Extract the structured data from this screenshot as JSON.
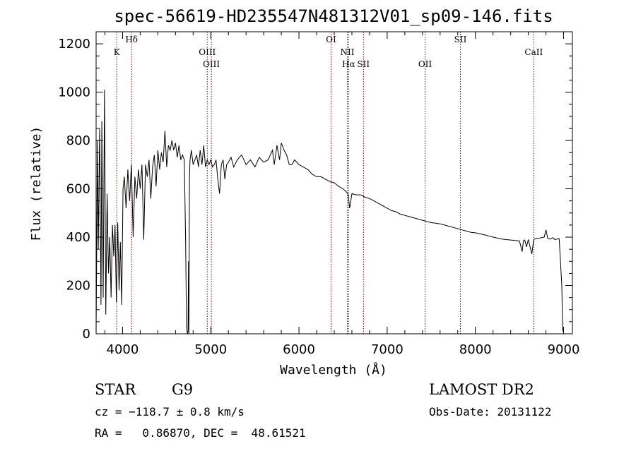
{
  "chart_data": {
    "type": "line",
    "title": "spec-56619-HD235547N481312V01_sp09-146.fits",
    "xlabel": "Wavelength (Å)",
    "ylabel": "Flux (relative)",
    "xlim": [
      3700,
      9100
    ],
    "ylim": [
      0,
      1250
    ],
    "x_ticks": [
      4000,
      5000,
      6000,
      7000,
      8000,
      9000
    ],
    "y_ticks": [
      0,
      200,
      400,
      600,
      800,
      1000,
      1200
    ],
    "grid": false,
    "series": [
      {
        "x": [
          3700,
          3715,
          3725,
          3740,
          3755,
          3765,
          3780,
          3795,
          3810,
          3825,
          3840,
          3855,
          3870,
          3885,
          3900,
          3915,
          3930,
          3945,
          3960,
          3975,
          3990,
          4005,
          4020,
          4040,
          4060,
          4080,
          4100,
          4120,
          4140,
          4160,
          4180,
          4200,
          4220,
          4240,
          4260,
          4280,
          4300,
          4320,
          4340,
          4360,
          4380,
          4400,
          4420,
          4440,
          4460,
          4480,
          4500,
          4520,
          4540,
          4560,
          4580,
          4600,
          4620,
          4640,
          4660,
          4680,
          4700,
          4715,
          4725,
          4735,
          4742,
          4748,
          4752,
          4758,
          4765,
          4780,
          4800,
          4820,
          4840,
          4860,
          4880,
          4900,
          4920,
          4940,
          4960,
          4980,
          5000,
          5020,
          5040,
          5060,
          5080,
          5100,
          5120,
          5140,
          5160,
          5180,
          5200,
          5230,
          5260,
          5300,
          5350,
          5400,
          5450,
          5500,
          5550,
          5600,
          5650,
          5700,
          5720,
          5750,
          5780,
          5800,
          5830,
          5860,
          5890,
          5920,
          5950,
          6000,
          6050,
          6100,
          6150,
          6200,
          6250,
          6300,
          6350,
          6400,
          6450,
          6500,
          6530,
          6555,
          6563,
          6575,
          6600,
          6650,
          6700,
          6750,
          6800,
          6850,
          6900,
          6950,
          7000,
          7050,
          7100,
          7150,
          7200,
          7250,
          7300,
          7350,
          7400,
          7450,
          7500,
          7550,
          7600,
          7650,
          7700,
          7750,
          7800,
          7850,
          7900,
          7950,
          8000,
          8050,
          8100,
          8150,
          8200,
          8250,
          8300,
          8350,
          8400,
          8450,
          8500,
          8530,
          8545,
          8560,
          8580,
          8600,
          8640,
          8660,
          8670,
          8690,
          8720,
          8750,
          8780,
          8800,
          8820,
          8850,
          8880,
          8900,
          8950,
          8980,
          8990
        ],
        "y": [
          0,
          800,
          350,
          850,
          120,
          880,
          150,
          1010,
          80,
          580,
          250,
          400,
          150,
          450,
          320,
          450,
          130,
          460,
          180,
          380,
          120,
          600,
          650,
          520,
          680,
          550,
          700,
          400,
          650,
          560,
          680,
          600,
          700,
          390,
          700,
          650,
          720,
          560,
          690,
          740,
          610,
          760,
          680,
          750,
          710,
          840,
          690,
          780,
          760,
          800,
          760,
          790,
          730,
          780,
          720,
          740,
          720,
          380,
          30,
          0,
          10,
          300,
          0,
          640,
          720,
          760,
          700,
          720,
          740,
          690,
          760,
          700,
          780,
          690,
          720,
          700,
          720,
          690,
          700,
          720,
          640,
          580,
          700,
          720,
          640,
          700,
          710,
          730,
          690,
          720,
          740,
          700,
          720,
          690,
          730,
          710,
          720,
          760,
          700,
          780,
          720,
          790,
          760,
          740,
          700,
          700,
          720,
          700,
          690,
          680,
          660,
          650,
          650,
          640,
          630,
          625,
          610,
          600,
          590,
          580,
          560,
          520,
          580,
          575,
          575,
          565,
          560,
          550,
          540,
          530,
          520,
          510,
          505,
          495,
          490,
          485,
          480,
          475,
          470,
          465,
          460,
          458,
          455,
          450,
          445,
          440,
          435,
          430,
          425,
          420,
          418,
          414,
          410,
          405,
          400,
          396,
          392,
          390,
          388,
          386,
          384,
          340,
          385,
          388,
          360,
          390,
          330,
          388,
          392,
          395,
          395,
          398,
          400,
          430,
          395,
          392,
          398,
          390,
          394,
          200,
          10
        ]
      }
    ],
    "spectral_lines": [
      {
        "label": "K",
        "x": 3934,
        "row": 2
      },
      {
        "label": "Hδ",
        "x": 4102,
        "row": 1
      },
      {
        "label": "OIII",
        "x": 4960,
        "row": 2
      },
      {
        "label": "OIII",
        "x": 5007,
        "row": 3
      },
      {
        "label": "OI",
        "x": 6364,
        "row": 1
      },
      {
        "label": "NII",
        "x": 6548,
        "row": 2
      },
      {
        "label": "Hα",
        "x": 6563,
        "row": 3
      },
      {
        "label": "SII",
        "x": 6731,
        "row": 3
      },
      {
        "label": "OII",
        "x": 7430,
        "row": 3
      },
      {
        "label": "SII",
        "x": 7830,
        "row": 1
      },
      {
        "label": "CaII",
        "x": 8662,
        "row": 2
      }
    ]
  },
  "info": {
    "class": "STAR",
    "subclass": "G9",
    "survey": "LAMOST DR2",
    "cz": "cz = −118.7 ± 0.8 km/s",
    "obs_date": "Obs-Date: 20131122",
    "coords": "RA =   0.86870, DEC =  48.61521"
  },
  "colors": {
    "spectrum": "#000000",
    "line_markers": "#8b0000",
    "axes": "#000000"
  }
}
